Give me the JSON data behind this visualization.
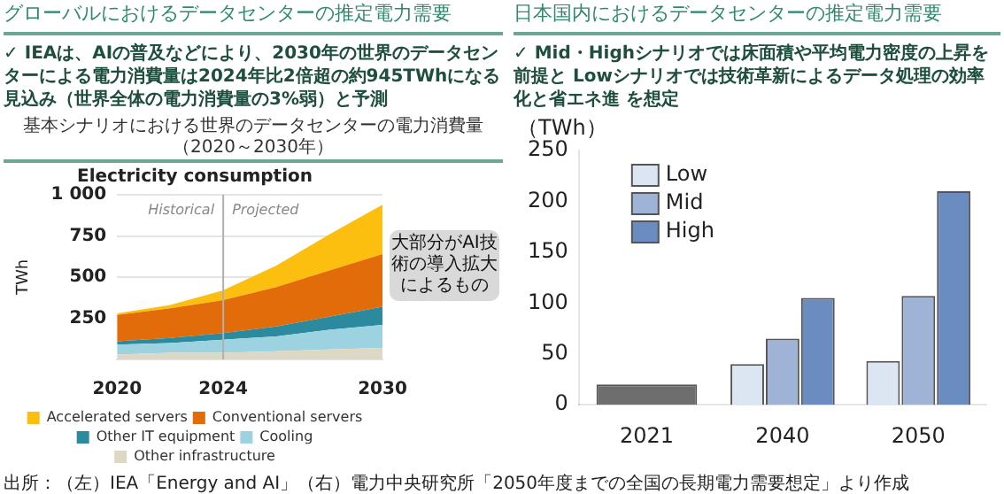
{
  "chart_data": [
    {
      "type": "area",
      "title": "Electricity consumption",
      "subtitle": "基本シナリオにおける世界のデータセンターの電力消費量（2020～2030年）",
      "ylabel": "TWh",
      "stacked": true,
      "grid": "y",
      "legend": "bottom",
      "marker": "none",
      "x": [
        2020,
        2022,
        2024,
        2026,
        2028,
        2030
      ],
      "xlim": [
        2020,
        2030
      ],
      "xticks": [
        2020,
        2024,
        2030
      ],
      "ylim": [
        0,
        1000
      ],
      "yticks": [
        250,
        500,
        750,
        {
          "value": 1000,
          "label": "1 000"
        }
      ],
      "series": [
        {
          "name": "Other infrastructure",
          "color": "#ddd8c4",
          "values": [
            30,
            40,
            40,
            50,
            60,
            70
          ]
        },
        {
          "name": "Cooling",
          "color": "#9dd3e0",
          "values": [
            60,
            60,
            80,
            90,
            120,
            140
          ]
        },
        {
          "name": "Other IT equipment",
          "color": "#2b8a9e",
          "values": [
            20,
            30,
            40,
            60,
            80,
            110
          ]
        },
        {
          "name": "Conventional servers",
          "color": "#e36c0a",
          "values": [
            160,
            180,
            200,
            240,
            280,
            320
          ]
        },
        {
          "name": "Accelerated servers",
          "color": "#fdbf0f",
          "values": [
            10,
            20,
            60,
            130,
            220,
            300
          ]
        }
      ],
      "ref_lines": [
        {
          "axis": "x",
          "value": 2024,
          "color": "#b0b0b0"
        }
      ],
      "annotations": [
        "グローバルにおけるデータセンターの推定電力需要",
        "✓ IEAは、AIの普及などにより、2030年の世界のデータセンターによる電力消費量は2024年比2倍超の約945TWhになる見込み（世界全体の電力消費量の3%弱）と予測",
        "大部分がAI技術の導入拡大によるもの",
        "Historical",
        "Projected",
        "出所：（左）IEA「Energy and AI」（右）電力中央研究所「2050年度までの全国の長期電力需要想定」より作成"
      ]
    },
    {
      "type": "bar",
      "ylabel": "（TWh）",
      "categories": [
        "2021",
        "2040",
        "2050"
      ],
      "ylim": [
        0,
        250
      ],
      "yticks": [
        0,
        50,
        100,
        150,
        200,
        250
      ],
      "legend": "top left",
      "series": [
        {
          "color": "#6e6e6e",
          "values": [
            20,
            null,
            null
          ]
        },
        {
          "name": "Low",
          "color": "#dce6f2",
          "values": [
            null,
            40,
            43
          ]
        },
        {
          "name": "Mid",
          "color": "#9fb3d6",
          "values": [
            null,
            65,
            107
          ]
        },
        {
          "name": "High",
          "color": "#6a8cc0",
          "values": [
            null,
            105,
            210
          ]
        }
      ],
      "annotations": [
        "日本国内におけるデータセンターの推定電力需要",
        "✓ Mid・Highシナリオでは床面積や平均電力密度の上昇を前提と Lowシナリオでは技術革新によるデータ処理の効率化と省エネ進 を想定"
      ]
    }
  ]
}
